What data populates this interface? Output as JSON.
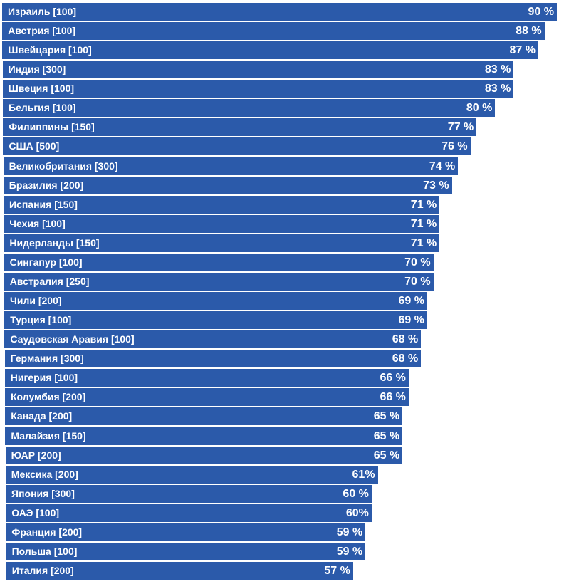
{
  "chart_data": {
    "type": "bar",
    "orientation": "horizontal",
    "categories": [
      "Израиль [100]",
      "Австрия [100]",
      "Швейцария [100]",
      "Индия [300]",
      "Швеция [100]",
      "Бельгия [100]",
      "Филиппины [150]",
      "США [500]",
      "Великобритания [300]",
      "Бразилия [200]",
      "Испания [150]",
      "Чехия [100]",
      "Нидерланды [150]",
      "Сингапур [100]",
      "Австралия [250]",
      "Чили [200]",
      "Турция [100]",
      "Саудовская Аравия [100]",
      "Германия [300]",
      "Нигерия [100]",
      "Колумбия [200]",
      "Канада [200]",
      "Малайзия [150]",
      "ЮАР [200]",
      "Мексика [200]",
      "Япония [300]",
      "ОАЭ [100]",
      "Франция [200]",
      "Польша [100]",
      "Италия [200]"
    ],
    "values": [
      90,
      88,
      87,
      83,
      83,
      80,
      77,
      76,
      74,
      73,
      71,
      71,
      71,
      70,
      70,
      69,
      69,
      68,
      68,
      66,
      66,
      65,
      65,
      65,
      61,
      60,
      60,
      59,
      59,
      57
    ],
    "value_labels": [
      "90 %",
      "88 %",
      "87 %",
      "83 %",
      "83 %",
      "80 %",
      "77 %",
      "76 %",
      "74 %",
      "73 %",
      "71 %",
      "71 %",
      "71 %",
      "70 %",
      "70 %",
      "69 %",
      "69 %",
      "68 %",
      "68 %",
      "66 %",
      "66 %",
      "65 %",
      "65 %",
      "65 %",
      "61%",
      "60 %",
      "60%",
      "59 %",
      "59 %",
      "57 %"
    ],
    "title": "",
    "xlabel": "",
    "ylabel": "",
    "unit": "%",
    "grid": false,
    "legend": "none",
    "colors": {
      "bar": "#2b5aaa",
      "text": "#ffffff"
    }
  }
}
